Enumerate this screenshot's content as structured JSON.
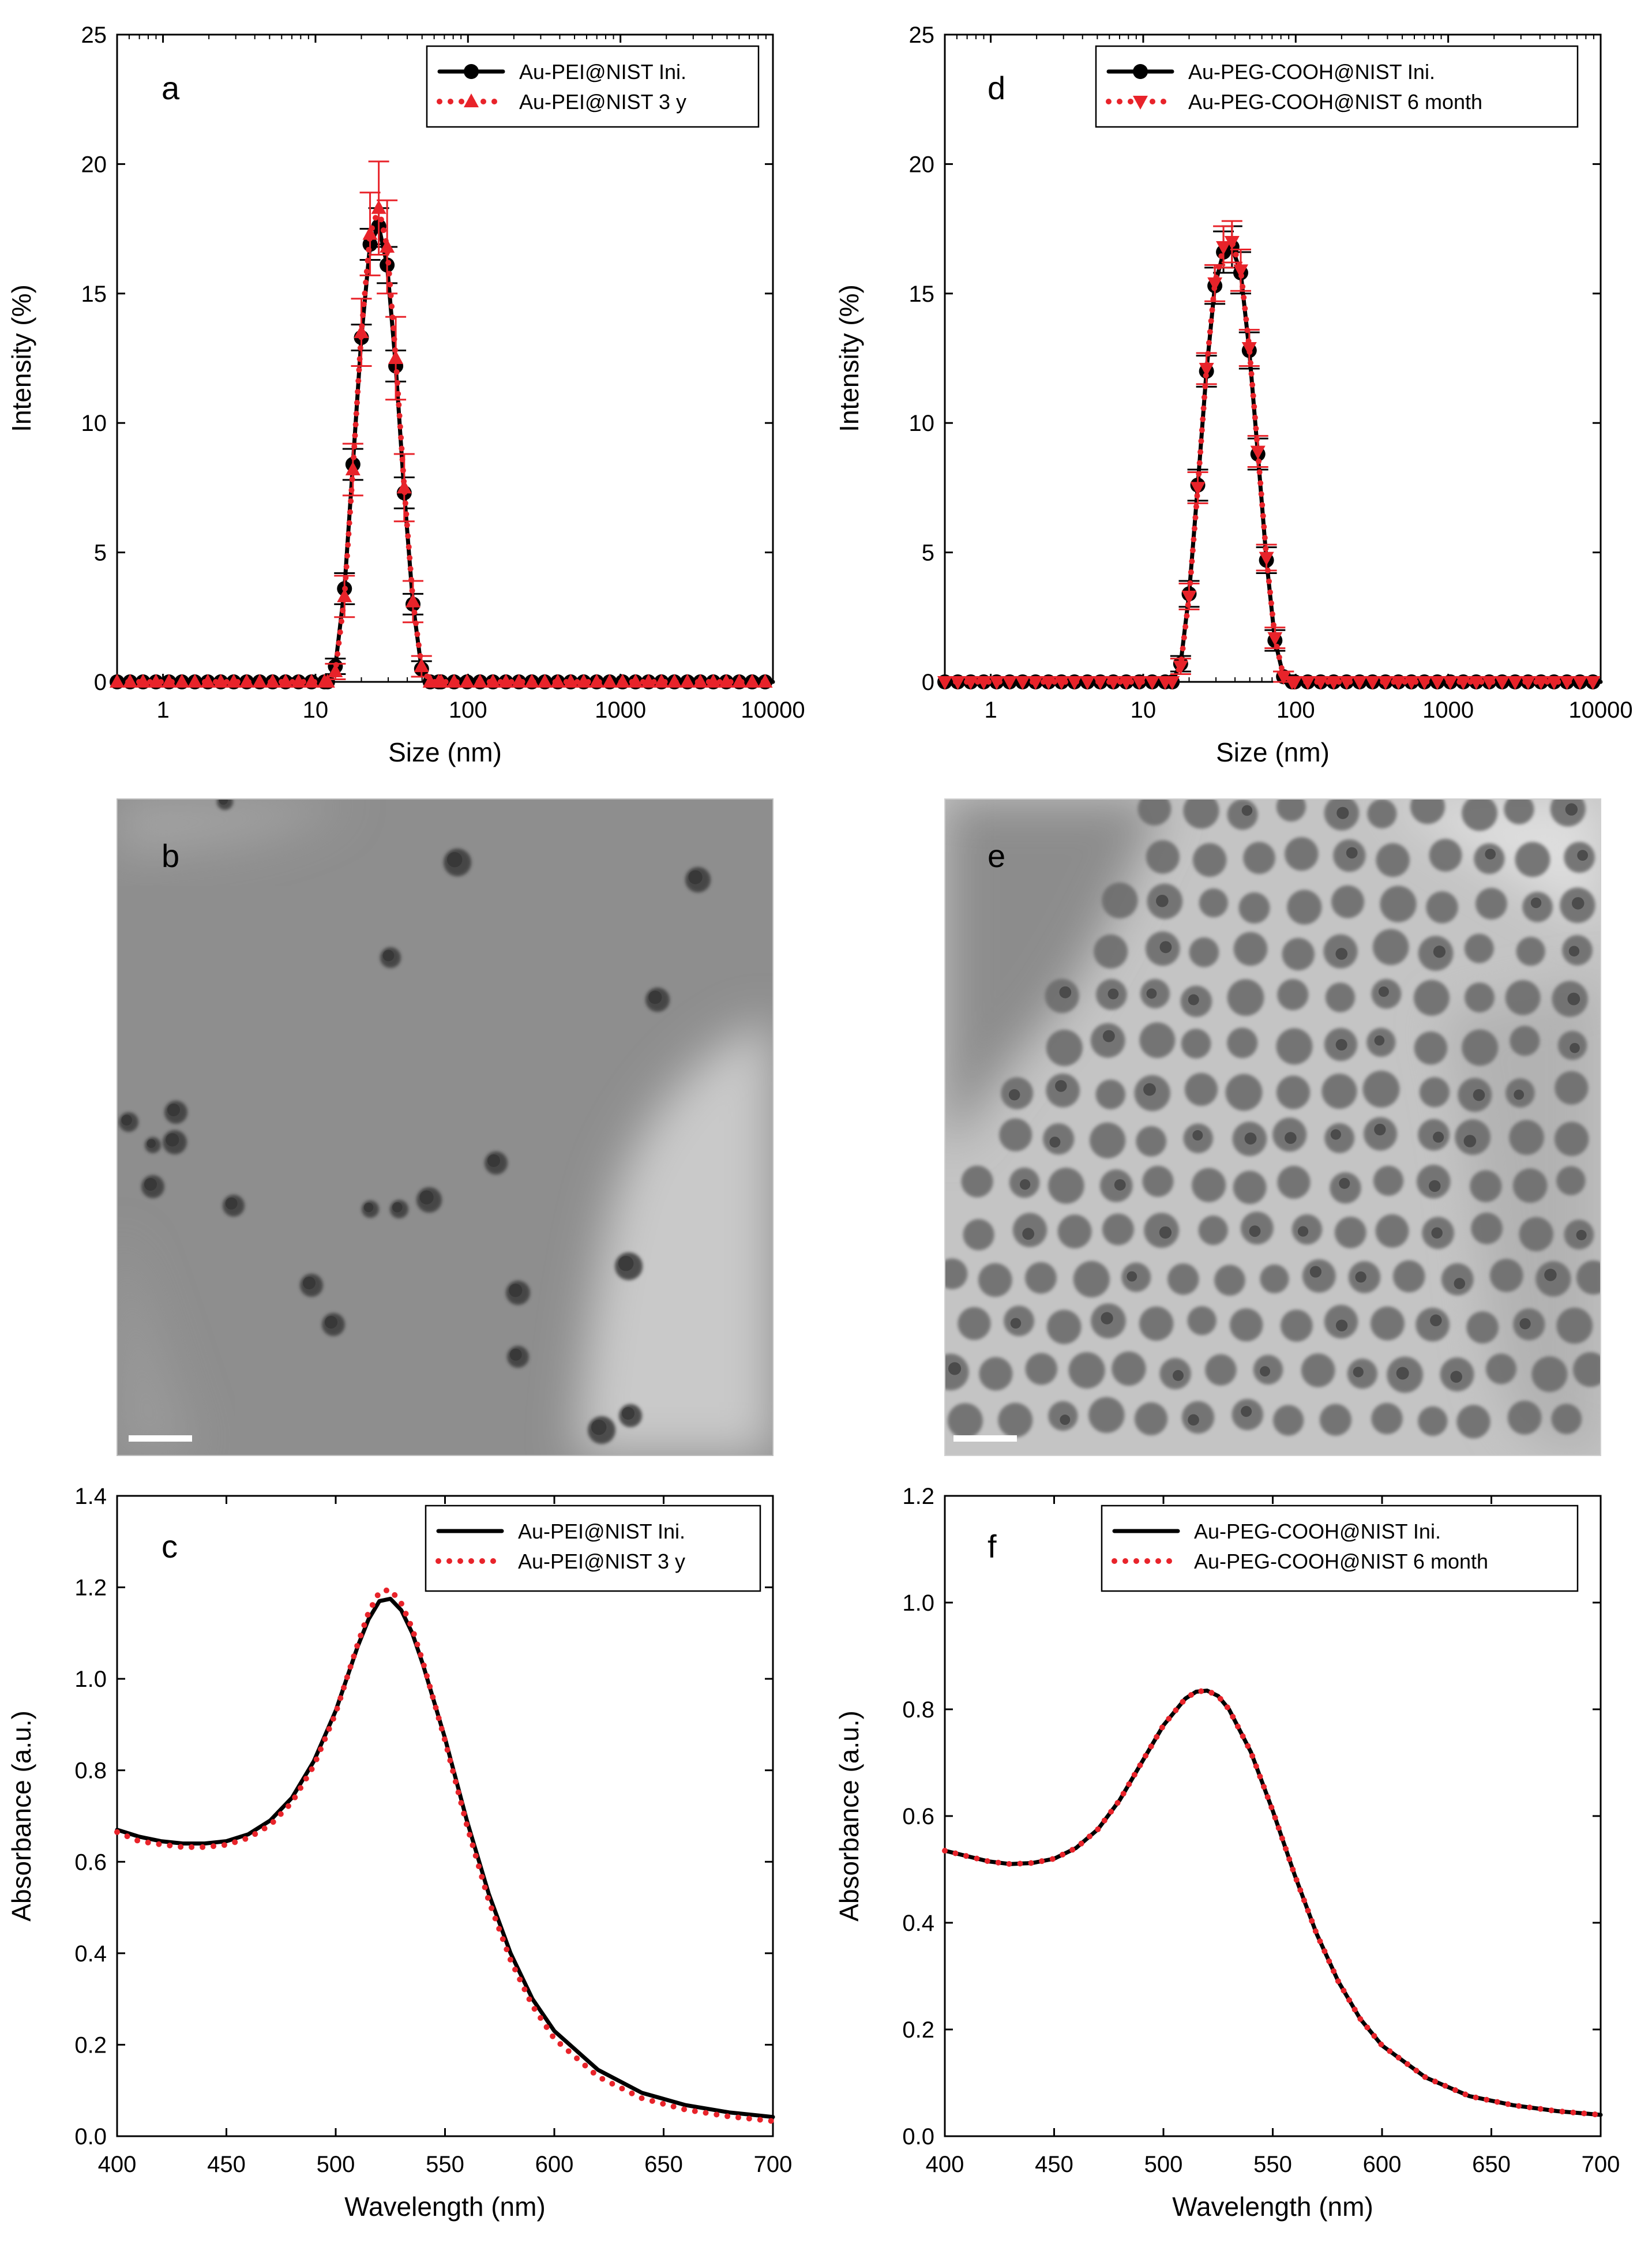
{
  "chart_data": [
    {
      "panel": "a",
      "type": "line",
      "xscale": "log",
      "xlim": [
        0.5,
        10000
      ],
      "ylim": [
        0,
        25
      ],
      "xticks": [
        1,
        10,
        100,
        1000,
        10000
      ],
      "yticks": [
        0,
        5,
        10,
        15,
        20,
        25
      ],
      "xlabel": "Size (nm)",
      "ylabel": "Intensity (%)",
      "legend_position": "top-right",
      "series": [
        {
          "name": "Au-PEI@NIST Ini.",
          "color": "#000000",
          "style": "solid",
          "marker": "circle",
          "x": [
            12,
            13.5,
            15.5,
            17.6,
            20,
            22.8,
            26,
            29.5,
            33.6,
            38.2,
            43.6,
            49.6,
            56.5,
            64.3
          ],
          "y": [
            0,
            0.6,
            3.6,
            8.4,
            13.3,
            16.9,
            17.6,
            16.1,
            12.2,
            7.3,
            3.0,
            0.5,
            0,
            0
          ],
          "err": [
            0,
            0.3,
            0.6,
            0.6,
            0.5,
            0.6,
            0.7,
            0.7,
            0.6,
            0.6,
            0.4,
            0.3,
            0,
            0
          ]
        },
        {
          "name": "Au-PEI@NIST 3 y",
          "color": "#e8232a",
          "style": "dotted",
          "marker": "triangle-up",
          "x": [
            12,
            13.5,
            15.5,
            17.6,
            20,
            22.8,
            26,
            29.5,
            33.6,
            38.2,
            43.6,
            49.6,
            56.5,
            64.3
          ],
          "y": [
            0,
            0.4,
            3.3,
            8.2,
            13.5,
            17.3,
            18.3,
            16.8,
            12.5,
            7.5,
            3.1,
            0.6,
            0,
            0
          ],
          "err": [
            0,
            0.3,
            0.8,
            1.0,
            1.3,
            1.6,
            1.8,
            1.8,
            1.6,
            1.3,
            0.8,
            0.4,
            0,
            0
          ]
        }
      ]
    },
    {
      "panel": "d",
      "type": "line",
      "xscale": "log",
      "xlim": [
        0.5,
        10000
      ],
      "ylim": [
        0,
        25
      ],
      "xticks": [
        1,
        10,
        100,
        1000,
        10000
      ],
      "yticks": [
        0,
        5,
        10,
        15,
        20,
        25
      ],
      "xlabel": "Size (nm)",
      "ylabel": "Intensity (%)",
      "legend_position": "top-right",
      "series": [
        {
          "name": "Au-PEG-COOH@NIST Ini.",
          "color": "#000000",
          "style": "solid",
          "marker": "circle",
          "x": [
            15.5,
            17.6,
            20,
            22.8,
            26,
            29.5,
            33.6,
            38.2,
            43.6,
            49.6,
            56.5,
            64.3,
            73.1,
            83.2,
            94.7
          ],
          "y": [
            0,
            0.7,
            3.4,
            7.6,
            12.0,
            15.3,
            16.6,
            16.8,
            15.8,
            12.8,
            8.8,
            4.7,
            1.6,
            0.2,
            0
          ],
          "err": [
            0,
            0.3,
            0.5,
            0.6,
            0.6,
            0.7,
            0.8,
            0.8,
            0.8,
            0.7,
            0.6,
            0.5,
            0.4,
            0.2,
            0
          ]
        },
        {
          "name": "Au-PEG-COOH@NIST 6 month",
          "color": "#e8232a",
          "style": "dotted",
          "marker": "triangle-down",
          "x": [
            15.5,
            17.6,
            20,
            22.8,
            26,
            29.5,
            33.6,
            38.2,
            43.6,
            49.6,
            56.5,
            64.3,
            73.1,
            83.2,
            94.7
          ],
          "y": [
            0,
            0.6,
            3.3,
            7.5,
            12.1,
            15.4,
            16.8,
            17.0,
            15.9,
            12.9,
            8.9,
            4.8,
            1.7,
            0.2,
            0
          ],
          "err": [
            0,
            0.3,
            0.5,
            0.6,
            0.6,
            0.7,
            0.8,
            0.8,
            0.8,
            0.7,
            0.6,
            0.5,
            0.4,
            0.2,
            0
          ]
        }
      ]
    },
    {
      "panel": "c",
      "type": "line",
      "xlim": [
        400,
        700
      ],
      "ylim": [
        0,
        1.4
      ],
      "xticks": [
        400,
        450,
        500,
        550,
        600,
        650,
        700
      ],
      "yticks": [
        0.0,
        0.2,
        0.4,
        0.6,
        0.8,
        1.0,
        1.2,
        1.4
      ],
      "xlabel": "Wavelength (nm)",
      "ylabel": "Absorbance (a.u.)",
      "legend_position": "top-right",
      "series": [
        {
          "name": "Au-PEI@NIST Ini.",
          "color": "#000000",
          "style": "solid",
          "x": [
            400,
            410,
            420,
            430,
            440,
            450,
            460,
            470,
            480,
            490,
            500,
            510,
            515,
            520,
            525,
            530,
            535,
            540,
            550,
            560,
            570,
            580,
            590,
            600,
            620,
            640,
            660,
            680,
            700
          ],
          "y": [
            0.67,
            0.655,
            0.645,
            0.64,
            0.64,
            0.645,
            0.66,
            0.69,
            0.74,
            0.82,
            0.93,
            1.07,
            1.13,
            1.17,
            1.175,
            1.15,
            1.1,
            1.03,
            0.87,
            0.69,
            0.53,
            0.4,
            0.3,
            0.23,
            0.145,
            0.095,
            0.068,
            0.052,
            0.042
          ]
        },
        {
          "name": "Au-PEI@NIST 3 y",
          "color": "#e8232a",
          "style": "dotted",
          "x": [
            400,
            410,
            420,
            430,
            440,
            450,
            460,
            470,
            480,
            490,
            500,
            510,
            515,
            520,
            525,
            530,
            535,
            540,
            550,
            560,
            570,
            580,
            590,
            600,
            620,
            640,
            660,
            680,
            700
          ],
          "y": [
            0.665,
            0.645,
            0.638,
            0.632,
            0.632,
            0.637,
            0.652,
            0.68,
            0.73,
            0.81,
            0.925,
            1.075,
            1.145,
            1.19,
            1.195,
            1.165,
            1.11,
            1.035,
            0.865,
            0.68,
            0.515,
            0.385,
            0.285,
            0.213,
            0.13,
            0.083,
            0.058,
            0.043,
            0.033
          ]
        }
      ]
    },
    {
      "panel": "f",
      "type": "line",
      "xlim": [
        400,
        700
      ],
      "ylim": [
        0,
        1.2
      ],
      "xticks": [
        400,
        450,
        500,
        550,
        600,
        650,
        700
      ],
      "yticks": [
        0.0,
        0.2,
        0.4,
        0.6,
        0.8,
        1.0,
        1.2
      ],
      "xlabel": "Wavelength (nm)",
      "ylabel": "Absorbance (a.u.)",
      "legend_position": "top-right",
      "series": [
        {
          "name": "Au-PEG-COOH@NIST Ini.",
          "color": "#000000",
          "style": "solid",
          "x": [
            400,
            410,
            420,
            430,
            440,
            450,
            460,
            470,
            480,
            490,
            500,
            510,
            515,
            520,
            525,
            530,
            540,
            550,
            560,
            570,
            580,
            590,
            600,
            620,
            640,
            660,
            680,
            700
          ],
          "y": [
            0.535,
            0.525,
            0.515,
            0.51,
            0.512,
            0.52,
            0.54,
            0.575,
            0.63,
            0.7,
            0.77,
            0.82,
            0.833,
            0.835,
            0.825,
            0.8,
            0.72,
            0.61,
            0.49,
            0.38,
            0.29,
            0.22,
            0.17,
            0.11,
            0.075,
            0.058,
            0.047,
            0.04
          ]
        },
        {
          "name": "Au-PEG-COOH@NIST 6 month",
          "color": "#e8232a",
          "style": "dotted",
          "x": [
            400,
            410,
            420,
            430,
            440,
            450,
            460,
            470,
            480,
            490,
            500,
            510,
            515,
            520,
            525,
            530,
            540,
            550,
            560,
            570,
            580,
            590,
            600,
            620,
            640,
            660,
            680,
            700
          ],
          "y": [
            0.535,
            0.525,
            0.515,
            0.51,
            0.512,
            0.52,
            0.54,
            0.575,
            0.63,
            0.7,
            0.77,
            0.82,
            0.833,
            0.835,
            0.825,
            0.8,
            0.72,
            0.61,
            0.49,
            0.38,
            0.29,
            0.22,
            0.17,
            0.11,
            0.075,
            0.058,
            0.047,
            0.04
          ]
        }
      ]
    }
  ],
  "tem_images": [
    {
      "panel": "b",
      "description_label": "TEM image panel b"
    },
    {
      "panel": "e",
      "description_label": "TEM image panel e"
    }
  ]
}
